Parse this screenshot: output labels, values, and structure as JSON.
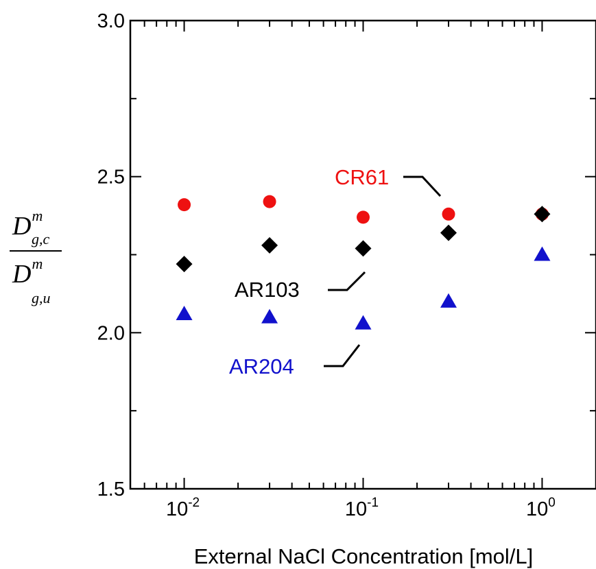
{
  "chart_data": {
    "type": "scatter",
    "xscale": "log",
    "xlim": [
      0.005,
      2
    ],
    "ylim": [
      1.5,
      3.0
    ],
    "xlabel": "External NaCl Concentration [mol/L]",
    "ylabel": {
      "numerator": {
        "base": "D",
        "sup": "m",
        "sub": "g,c"
      },
      "denominator": {
        "base": "D",
        "sup": "m",
        "sub": "g,u"
      }
    },
    "yticks": [
      {
        "value": 1.5,
        "label": "1.5"
      },
      {
        "value": 2.0,
        "label": "2.0"
      },
      {
        "value": 2.5,
        "label": "2.5"
      },
      {
        "value": 3.0,
        "label": "3.0"
      }
    ],
    "xticks": [
      {
        "value": 0.01,
        "base": "10",
        "exp": "-2"
      },
      {
        "value": 0.1,
        "base": "10",
        "exp": "-1"
      },
      {
        "value": 1,
        "base": "10",
        "exp": "0"
      }
    ],
    "grid": false,
    "series": [
      {
        "name": "CR61",
        "color": "#ee1111",
        "marker": "circle",
        "x": [
          0.01,
          0.03,
          0.1,
          0.3,
          1.0
        ],
        "y": [
          2.41,
          2.42,
          2.37,
          2.38,
          2.38
        ]
      },
      {
        "name": "AR103",
        "color": "#000000",
        "marker": "diamond",
        "x": [
          0.01,
          0.03,
          0.1,
          0.3,
          1.0
        ],
        "y": [
          2.22,
          2.28,
          2.27,
          2.32,
          2.38
        ]
      },
      {
        "name": "AR204",
        "color": "#1111cc",
        "marker": "triangle",
        "x": [
          0.01,
          0.03,
          0.1,
          0.3,
          1.0
        ],
        "y": [
          2.06,
          2.05,
          2.03,
          2.1,
          2.25
        ]
      }
    ]
  }
}
